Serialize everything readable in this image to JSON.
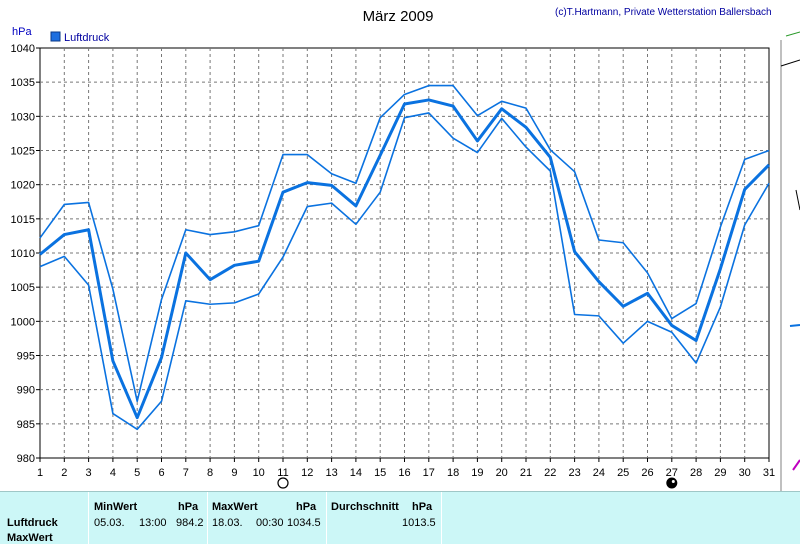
{
  "header": {
    "title": "März 2009",
    "copyright": "(c)T.Hartmann, Private Wetterstation Ballersbach"
  },
  "chart_data": {
    "type": "line",
    "ylabel": "hPa",
    "ylim": [
      980,
      1040
    ],
    "yticks": [
      980,
      985,
      990,
      995,
      1000,
      1005,
      1010,
      1015,
      1020,
      1025,
      1030,
      1035,
      1040
    ],
    "x": [
      1,
      2,
      3,
      4,
      5,
      6,
      7,
      8,
      9,
      10,
      11,
      12,
      13,
      14,
      15,
      16,
      17,
      18,
      19,
      20,
      21,
      22,
      23,
      24,
      25,
      26,
      27,
      28,
      29,
      30,
      31
    ],
    "xlim": [
      1,
      31
    ],
    "grid": true,
    "legend": {
      "position": "top-left",
      "label": "Luftdruck"
    },
    "series": [
      {
        "name": "Luftdruck",
        "role": "max",
        "values": [
          1012.2,
          1017.1,
          1017.4,
          1004.7,
          988.3,
          1003.2,
          1013.4,
          1012.7,
          1013.1,
          1014.0,
          1024.4,
          1024.4,
          1021.6,
          1020.2,
          1029.8,
          1033.2,
          1034.5,
          1034.5,
          1030.1,
          1032.2,
          1031.2,
          1025.1,
          1021.9,
          1011.9,
          1011.5,
          1007.1,
          1000.4,
          1002.6,
          1013.8,
          1023.7,
          1025.0
        ]
      },
      {
        "name": "Luftdruck",
        "role": "mean",
        "values": [
          1009.8,
          1012.7,
          1013.4,
          994.2,
          985.9,
          994.7,
          1010.0,
          1006.1,
          1008.2,
          1008.8,
          1018.9,
          1020.3,
          1019.9,
          1016.9,
          1024.3,
          1031.8,
          1032.4,
          1031.5,
          1026.4,
          1031.1,
          1028.4,
          1024.0,
          1010.2,
          1005.8,
          1002.2,
          1004.1,
          999.4,
          997.2,
          1007.7,
          1019.3,
          1022.9
        ]
      },
      {
        "name": "Luftdruck",
        "role": "min",
        "values": [
          1008.0,
          1009.5,
          1005.3,
          986.5,
          984.2,
          988.3,
          1003.0,
          1002.5,
          1002.7,
          1004.0,
          1009.4,
          1016.8,
          1017.3,
          1014.2,
          1018.9,
          1029.8,
          1030.5,
          1026.8,
          1024.7,
          1029.7,
          1025.5,
          1022.0,
          1001.0,
          1000.8,
          996.8,
          1000.0,
          998.4,
          993.9,
          1002.1,
          1014.1,
          1020.2
        ]
      }
    ],
    "markers": [
      {
        "day": 11,
        "symbol": "full-moon"
      },
      {
        "day": 27,
        "symbol": "new-moon"
      }
    ],
    "colors": {
      "line": "#0a72e0",
      "legend_box": "#1e6fe0",
      "stats_bg": "#ccf7f7"
    }
  },
  "stats": {
    "row_labels": [
      "Luftdruck",
      "MaxWert"
    ],
    "min": {
      "header": "MinWert",
      "unit": "hPa",
      "date": "05.03.",
      "time": "13:00",
      "value": "984.2"
    },
    "max": {
      "header": "MaxWert",
      "unit": "hPa",
      "date": "18.03.",
      "time": "00:30",
      "value": "1034.5"
    },
    "avg": {
      "header": "Durchschnitt",
      "unit": "hPa",
      "value": "1013.5"
    }
  }
}
